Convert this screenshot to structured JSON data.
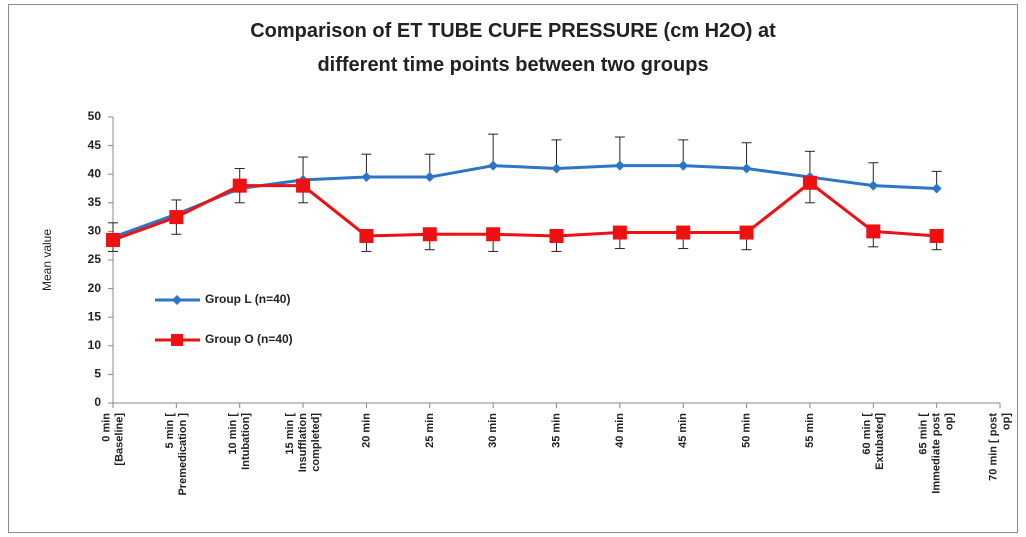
{
  "chart_data": {
    "type": "line",
    "title": "Comparison of ET TUBE CUFE PRESSURE (cm H2O) at different time points between two groups",
    "y_label": "Mean value",
    "categories": [
      "0 min [Baseline]",
      "5 min [ Premedication ]",
      "10 min [ Intubation]",
      "15 min [ Insufflation completed]",
      "20 min",
      "25 min",
      "30 min",
      "35 min",
      "40 min",
      "45 min",
      "50 min",
      "55 min",
      "60 min [ Extubated]",
      "65 min [ Immediate post op]",
      "70 min [ post op]"
    ],
    "series": [
      {
        "name": "Group L (n=40)",
        "color": "#2e75c8",
        "marker": "diamond",
        "error_direction": "up",
        "values": [
          29,
          33,
          37.5,
          39,
          39.5,
          39.5,
          41.5,
          41,
          41.5,
          41.5,
          41,
          39.5,
          38,
          37.5,
          null
        ],
        "errors": [
          2.5,
          2.5,
          3.5,
          4,
          4,
          4,
          5.5,
          5,
          5,
          4.5,
          4.5,
          4.5,
          4,
          3,
          null
        ]
      },
      {
        "name": "Group O (n=40)",
        "color": "#ee1111",
        "marker": "square",
        "error_direction": "down",
        "values": [
          28.5,
          32.5,
          38,
          38,
          29.2,
          29.5,
          29.5,
          29.2,
          29.8,
          29.8,
          29.8,
          38.5,
          30,
          29.2,
          null
        ],
        "errors": [
          2,
          3,
          3,
          3,
          2.7,
          2.7,
          3,
          2.7,
          2.8,
          2.8,
          3,
          3.5,
          2.7,
          2.4,
          null
        ]
      }
    ],
    "ylim": [
      0,
      50
    ],
    "yticks": [
      0,
      5,
      10,
      15,
      20,
      25,
      30,
      35,
      40,
      45,
      50
    ],
    "grid": false
  }
}
